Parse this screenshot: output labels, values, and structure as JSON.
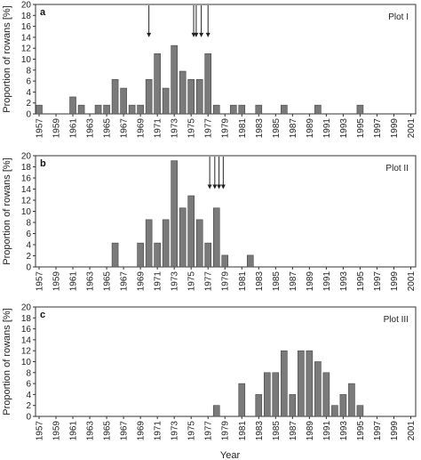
{
  "chart_data": [
    {
      "type": "bar",
      "panel_letter": "a",
      "plot_label": "Plot I",
      "ylabel": "Proportion of rowans [%]",
      "xlabel": "",
      "ylim": [
        0,
        20
      ],
      "yticks": [
        0,
        2,
        4,
        6,
        8,
        10,
        12,
        14,
        16,
        18,
        20
      ],
      "xlim": [
        1957,
        2002
      ],
      "xticks": [
        1957,
        1959,
        1961,
        1963,
        1965,
        1967,
        1969,
        1971,
        1973,
        1975,
        1977,
        1979,
        1981,
        1983,
        1985,
        1987,
        1989,
        1991,
        1993,
        1995,
        1997,
        1999,
        2001
      ],
      "years": [
        1957,
        1961,
        1962,
        1964,
        1965,
        1966,
        1967,
        1968,
        1969,
        1970,
        1971,
        1972,
        1973,
        1974,
        1975,
        1976,
        1977,
        1978,
        1980,
        1981,
        1983,
        1986,
        1990,
        1995
      ],
      "values": [
        1.6,
        3.1,
        1.6,
        1.6,
        1.6,
        6.3,
        4.7,
        1.6,
        1.6,
        6.3,
        11.0,
        4.7,
        12.5,
        7.8,
        6.3,
        6.3,
        11.0,
        1.6,
        1.6,
        1.6,
        1.6,
        1.6,
        1.6,
        1.6
      ],
      "arrows": [
        1970,
        1975.3,
        1975.6,
        1976.2,
        1977
      ]
    },
    {
      "type": "bar",
      "panel_letter": "b",
      "plot_label": "Plot II",
      "ylabel": "Proportion of rowans [%]",
      "xlabel": "",
      "ylim": [
        0,
        20
      ],
      "yticks": [
        0,
        2,
        4,
        6,
        8,
        10,
        12,
        14,
        16,
        18,
        20
      ],
      "xlim": [
        1957,
        2002
      ],
      "xticks": [
        1957,
        1959,
        1961,
        1963,
        1965,
        1967,
        1969,
        1971,
        1973,
        1975,
        1977,
        1979,
        1981,
        1983,
        1985,
        1987,
        1989,
        1991,
        1993,
        1995,
        1997,
        1999,
        2001
      ],
      "years": [
        1966,
        1969,
        1970,
        1971,
        1972,
        1973,
        1974,
        1975,
        1976,
        1977,
        1978,
        1979,
        1982
      ],
      "values": [
        4.3,
        4.3,
        8.5,
        4.3,
        8.5,
        19.1,
        10.6,
        12.8,
        8.5,
        4.3,
        10.6,
        2.1,
        2.1
      ],
      "arrows": [
        1977.2,
        1977.8,
        1978.3,
        1978.8
      ]
    },
    {
      "type": "bar",
      "panel_letter": "c",
      "plot_label": "Plot III",
      "ylabel": "Proportion of rowans [%]",
      "xlabel": "Year",
      "ylim": [
        0,
        20
      ],
      "yticks": [
        0,
        2,
        4,
        6,
        8,
        10,
        12,
        14,
        16,
        18,
        20
      ],
      "xlim": [
        1957,
        2002
      ],
      "xticks": [
        1957,
        1959,
        1961,
        1963,
        1965,
        1967,
        1969,
        1971,
        1973,
        1975,
        1977,
        1979,
        1981,
        1983,
        1985,
        1987,
        1989,
        1991,
        1993,
        1995,
        1997,
        1999,
        2001
      ],
      "years": [
        1978,
        1981,
        1983,
        1984,
        1985,
        1986,
        1987,
        1988,
        1989,
        1990,
        1991,
        1992,
        1993,
        1994,
        1995
      ],
      "values": [
        2,
        6,
        4,
        8,
        8,
        12,
        4,
        12,
        12,
        10,
        8,
        2,
        4,
        6,
        2
      ],
      "arrows": []
    }
  ],
  "colors": {
    "bar_fill": "#7a7a7a",
    "bar_stroke": "#444444",
    "axis": "#333333",
    "gridline": "#d0d0d0",
    "arrow": "#222222"
  }
}
